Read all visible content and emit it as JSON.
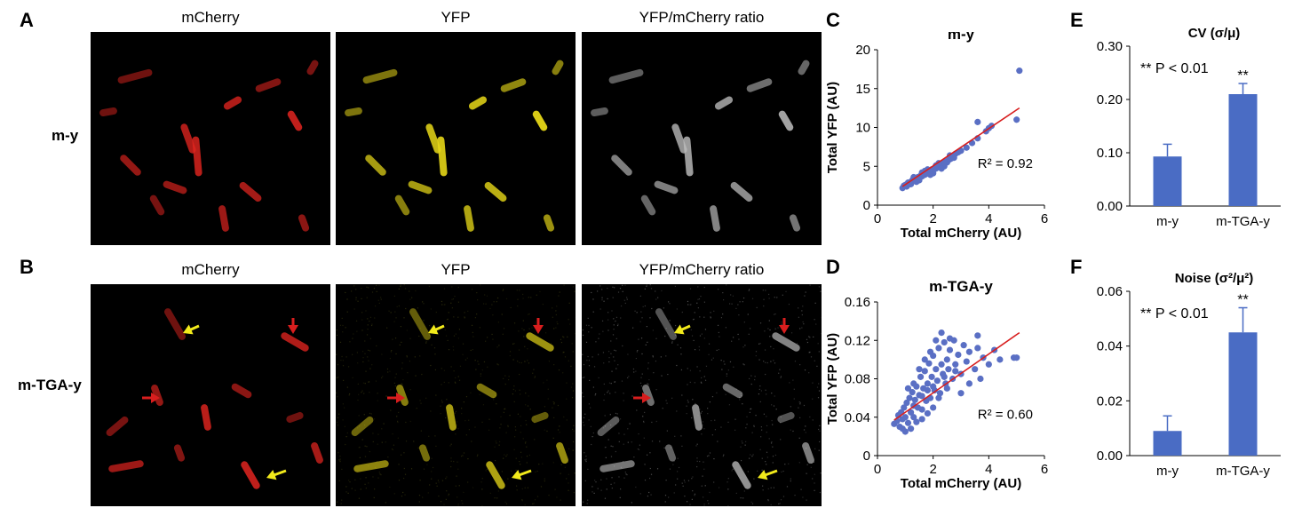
{
  "panels": {
    "A": "A",
    "B": "B",
    "C": "C",
    "D": "D",
    "E": "E",
    "F": "F"
  },
  "rows": {
    "top": "m-y",
    "bottom": "m-TGA-y"
  },
  "columns": [
    "mCherry",
    "YFP",
    "YFP/mCherry ratio"
  ],
  "colors": {
    "mcherry": "#e0241f",
    "yfp": "#e3d417",
    "ratio": "#bdbdbd",
    "point": "#5a6fc4",
    "fit": "#d81e1e",
    "bar": "#4a6cc4",
    "arrow_red": "#d81e1e",
    "arrow_yellow": "#f2ea1b"
  },
  "chart_data": [
    {
      "id": "C",
      "type": "scatter",
      "title": "m-y",
      "xlabel": "Total mCherry (AU)",
      "ylabel": "Total YFP (AU)",
      "xlim": [
        0,
        6
      ],
      "ylim": [
        0,
        20
      ],
      "xticks": [
        "0",
        "2",
        "4",
        "6"
      ],
      "yticks": [
        "0",
        "5",
        "10",
        "15",
        "20"
      ],
      "annotation": "R² = 0.92",
      "fit": {
        "x": [
          0.9,
          5.1
        ],
        "y": [
          2.4,
          12.5
        ]
      },
      "points": [
        [
          0.9,
          2.2
        ],
        [
          0.95,
          2.5
        ],
        [
          1.0,
          2.6
        ],
        [
          1.05,
          2.4
        ],
        [
          1.1,
          2.9
        ],
        [
          1.15,
          2.7
        ],
        [
          1.2,
          3.0
        ],
        [
          1.25,
          3.2
        ],
        [
          1.3,
          3.1
        ],
        [
          1.35,
          3.4
        ],
        [
          1.4,
          3.3
        ],
        [
          1.45,
          3.6
        ],
        [
          1.5,
          3.5
        ],
        [
          1.55,
          3.8
        ],
        [
          1.6,
          3.7
        ],
        [
          1.65,
          4.0
        ],
        [
          1.7,
          3.9
        ],
        [
          1.75,
          4.2
        ],
        [
          1.8,
          4.1
        ],
        [
          1.85,
          4.4
        ],
        [
          1.9,
          4.3
        ],
        [
          1.95,
          4.6
        ],
        [
          2.0,
          4.5
        ],
        [
          2.05,
          4.8
        ],
        [
          2.1,
          4.7
        ],
        [
          2.15,
          5.0
        ],
        [
          2.2,
          4.9
        ],
        [
          2.25,
          5.2
        ],
        [
          2.3,
          5.1
        ],
        [
          2.35,
          5.4
        ],
        [
          2.4,
          5.3
        ],
        [
          2.45,
          5.6
        ],
        [
          2.5,
          5.5
        ],
        [
          2.55,
          5.8
        ],
        [
          2.6,
          5.9
        ],
        [
          2.65,
          6.0
        ],
        [
          2.7,
          6.3
        ],
        [
          2.8,
          6.6
        ],
        [
          2.9,
          6.8
        ],
        [
          3.0,
          7.0
        ],
        [
          1.2,
          2.7
        ],
        [
          1.4,
          3.0
        ],
        [
          1.6,
          4.2
        ],
        [
          1.8,
          4.6
        ],
        [
          2.0,
          4.1
        ],
        [
          2.2,
          5.4
        ],
        [
          2.4,
          5.0
        ],
        [
          1.3,
          3.6
        ],
        [
          1.5,
          3.2
        ],
        [
          1.7,
          4.4
        ],
        [
          1.9,
          3.9
        ],
        [
          2.1,
          5.1
        ],
        [
          2.3,
          4.7
        ],
        [
          2.6,
          6.4
        ],
        [
          2.75,
          6.1
        ],
        [
          3.2,
          7.4
        ],
        [
          3.4,
          8.0
        ],
        [
          3.6,
          8.6
        ],
        [
          3.6,
          10.7
        ],
        [
          3.9,
          9.5
        ],
        [
          4.0,
          9.9
        ],
        [
          4.1,
          10.2
        ],
        [
          5.0,
          11.0
        ],
        [
          5.1,
          17.3
        ]
      ]
    },
    {
      "id": "D",
      "type": "scatter",
      "title": "m-TGA-y",
      "xlabel": "Total mCherry (AU)",
      "ylabel": "Total YFP (AU)",
      "xlim": [
        0,
        6
      ],
      "ylim": [
        0,
        0.16
      ],
      "xticks": [
        "0",
        "2",
        "4",
        "6"
      ],
      "yticks": [
        "0",
        "0.04",
        "0.08",
        "0.12",
        "0.16"
      ],
      "annotation": "R² = 0.60",
      "fit": {
        "x": [
          0.6,
          5.1
        ],
        "y": [
          0.037,
          0.128
        ]
      },
      "points": [
        [
          0.6,
          0.033
        ],
        [
          0.7,
          0.036
        ],
        [
          0.75,
          0.042
        ],
        [
          0.8,
          0.03
        ],
        [
          0.85,
          0.045
        ],
        [
          0.9,
          0.038
        ],
        [
          0.95,
          0.05
        ],
        [
          1.0,
          0.04
        ],
        [
          1.05,
          0.055
        ],
        [
          1.1,
          0.034
        ],
        [
          1.15,
          0.06
        ],
        [
          1.2,
          0.045
        ],
        [
          1.25,
          0.066
        ],
        [
          1.3,
          0.04
        ],
        [
          1.35,
          0.058
        ],
        [
          1.4,
          0.072
        ],
        [
          1.45,
          0.05
        ],
        [
          1.5,
          0.063
        ],
        [
          1.55,
          0.082
        ],
        [
          1.6,
          0.048
        ],
        [
          1.65,
          0.07
        ],
        [
          1.7,
          0.088
        ],
        [
          1.75,
          0.057
        ],
        [
          1.8,
          0.075
        ],
        [
          1.85,
          0.096
        ],
        [
          1.9,
          0.06
        ],
        [
          1.95,
          0.082
        ],
        [
          2.0,
          0.104
        ],
        [
          2.05,
          0.068
        ],
        [
          2.1,
          0.09
        ],
        [
          2.15,
          0.078
        ],
        [
          2.2,
          0.112
        ],
        [
          2.25,
          0.065
        ],
        [
          2.3,
          0.095
        ],
        [
          2.35,
          0.085
        ],
        [
          2.4,
          0.118
        ],
        [
          2.45,
          0.075
        ],
        [
          2.5,
          0.1
        ],
        [
          2.55,
          0.09
        ],
        [
          2.6,
          0.11
        ],
        [
          2.7,
          0.08
        ],
        [
          2.75,
          0.12
        ],
        [
          2.8,
          0.095
        ],
        [
          2.9,
          0.105
        ],
        [
          3.0,
          0.085
        ],
        [
          3.1,
          0.115
        ],
        [
          3.2,
          0.098
        ],
        [
          3.3,
          0.108
        ],
        [
          3.5,
          0.09
        ],
        [
          3.6,
          0.112
        ],
        [
          3.7,
          0.08
        ],
        [
          3.8,
          0.102
        ],
        [
          4.0,
          0.095
        ],
        [
          4.2,
          0.11
        ],
        [
          4.4,
          0.1
        ],
        [
          4.9,
          0.102
        ],
        [
          5.0,
          0.102
        ],
        [
          1.0,
          0.025
        ],
        [
          1.2,
          0.028
        ],
        [
          1.4,
          0.035
        ],
        [
          1.6,
          0.038
        ],
        [
          1.8,
          0.044
        ],
        [
          2.0,
          0.05
        ],
        [
          1.1,
          0.07
        ],
        [
          1.3,
          0.075
        ],
        [
          1.5,
          0.09
        ],
        [
          1.7,
          0.1
        ],
        [
          1.9,
          0.108
        ],
        [
          2.1,
          0.12
        ],
        [
          2.3,
          0.128
        ],
        [
          2.6,
          0.122
        ],
        [
          3.0,
          0.065
        ],
        [
          3.3,
          0.075
        ],
        [
          3.6,
          0.125
        ],
        [
          2.2,
          0.06
        ],
        [
          2.5,
          0.07
        ],
        [
          1.6,
          0.062
        ],
        [
          1.8,
          0.068
        ],
        [
          2.0,
          0.072
        ],
        [
          2.4,
          0.082
        ],
        [
          2.8,
          0.088
        ],
        [
          0.9,
          0.028
        ],
        [
          1.3,
          0.052
        ]
      ]
    },
    {
      "id": "E",
      "type": "bar",
      "title": "CV (σ/μ)",
      "categories": [
        "m-y",
        "m-TGA-y"
      ],
      "values": [
        0.093,
        0.21
      ],
      "errors": [
        0.023,
        0.02
      ],
      "sig": [
        "",
        "**"
      ],
      "annotation": "** P < 0.01",
      "ylim": [
        0,
        0.3
      ],
      "yticks": [
        "0.00",
        "0.10",
        "0.20",
        "0.30"
      ]
    },
    {
      "id": "F",
      "type": "bar",
      "title": "Noise (σ²/μ²)",
      "categories": [
        "m-y",
        "m-TGA-y"
      ],
      "values": [
        0.009,
        0.045
      ],
      "errors": [
        0.0055,
        0.009
      ],
      "sig": [
        "",
        "**"
      ],
      "annotation": "** P < 0.01",
      "ylim": [
        0,
        0.06
      ],
      "yticks": [
        "0.00",
        "0.02",
        "0.04",
        "0.06"
      ]
    }
  ]
}
